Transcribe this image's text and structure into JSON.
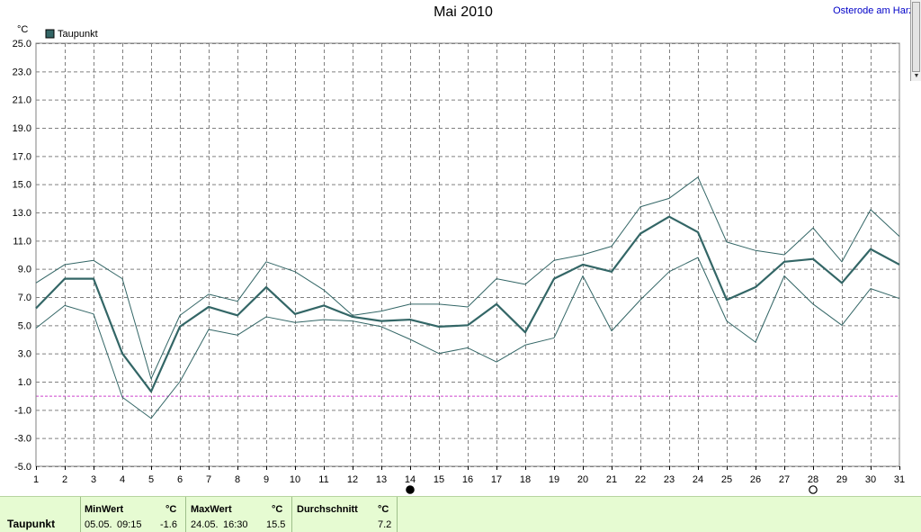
{
  "chart_data": {
    "type": "line",
    "title": "Mai 2010",
    "location": "Osterode am Harz",
    "ylabel": "°C",
    "ylim": [
      -5.0,
      25.0
    ],
    "yticks": [
      "25.0",
      "23.0",
      "21.0",
      "19.0",
      "17.0",
      "15.0",
      "13.0",
      "11.0",
      "9.0",
      "7.0",
      "5.0",
      "3.0",
      "1.0",
      "-1.0",
      "-3.0",
      "-5.0"
    ],
    "xlim": [
      1,
      31
    ],
    "x": [
      1,
      2,
      3,
      4,
      5,
      6,
      7,
      8,
      9,
      10,
      11,
      12,
      13,
      14,
      15,
      16,
      17,
      18,
      19,
      20,
      21,
      22,
      23,
      24,
      25,
      26,
      27,
      28,
      29,
      30,
      31
    ],
    "grid": true,
    "legend": {
      "label": "Taupunkt",
      "color": "#336666",
      "placement": "top-left"
    },
    "reference_line": {
      "value": 0,
      "color": "#cc44cc"
    },
    "moon_markers": [
      {
        "day": 14,
        "phase": "new-moon"
      },
      {
        "day": 28,
        "phase": "full-moon"
      }
    ],
    "series": [
      {
        "name": "Taupunkt",
        "role": "average",
        "color": "#336666",
        "values": [
          6.2,
          8.3,
          8.3,
          3.0,
          0.3,
          4.9,
          6.3,
          5.7,
          7.7,
          5.8,
          6.4,
          5.6,
          5.3,
          5.4,
          4.9,
          5.0,
          6.5,
          4.5,
          8.3,
          9.3,
          8.8,
          11.5,
          12.7,
          11.6,
          6.8,
          7.7,
          9.5,
          9.7,
          8.0,
          10.4,
          9.3
        ]
      },
      {
        "role": "maximum",
        "color": "#336666",
        "values": [
          8.0,
          9.3,
          9.6,
          8.3,
          1.2,
          5.7,
          7.2,
          6.7,
          9.5,
          8.8,
          7.5,
          5.7,
          6.0,
          6.5,
          6.5,
          6.3,
          8.3,
          7.9,
          9.6,
          10.0,
          10.6,
          13.4,
          14.0,
          15.5,
          10.9,
          10.3,
          10.0,
          11.9,
          9.5,
          13.2,
          11.3
        ]
      },
      {
        "role": "minimum",
        "color": "#336666",
        "values": [
          4.8,
          6.4,
          5.8,
          -0.1,
          -1.6,
          1.0,
          4.7,
          4.3,
          5.6,
          5.2,
          5.4,
          5.3,
          4.9,
          4.0,
          3.0,
          3.4,
          2.4,
          3.6,
          4.1,
          8.5,
          4.6,
          6.8,
          8.8,
          9.8,
          5.3,
          3.8,
          8.5,
          6.5,
          5.0,
          7.6,
          6.9
        ]
      }
    ]
  },
  "stats": {
    "row_label": "Taupunkt",
    "min": {
      "header": "MinWert",
      "unit": "°C",
      "date": "05.05.",
      "time": "09:15",
      "value": "-1.6"
    },
    "max": {
      "header": "MaxWert",
      "unit": "°C",
      "date": "24.05.",
      "time": "16:30",
      "value": "15.5"
    },
    "avg": {
      "header": "Durchschnitt",
      "unit": "°C",
      "value": "7.2"
    }
  },
  "colors": {
    "line": "#336666",
    "grid": "#808080",
    "reference": "#cc44cc",
    "stats_background": "#e6fbd2",
    "location_text": "#0000c8"
  }
}
